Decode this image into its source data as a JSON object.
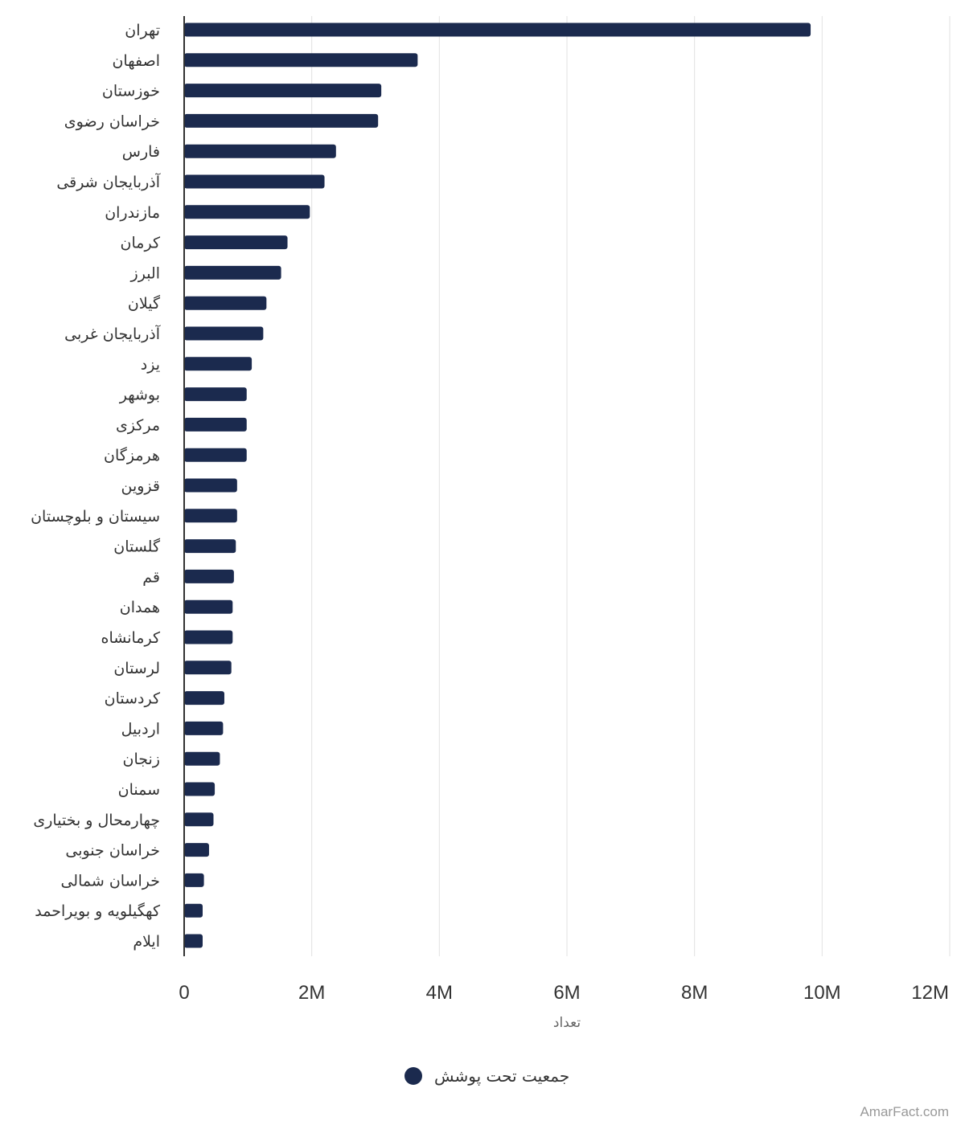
{
  "chart_data": {
    "type": "bar",
    "orientation": "horizontal",
    "categories": [
      "تهران",
      "اصفهان",
      "خوزستان",
      "خراسان رضوی",
      "فارس",
      "آذربایجان شرقی",
      "مازندران",
      "کرمان",
      "البرز",
      "گیلان",
      "آذربایجان غربی",
      "یزد",
      "بوشهر",
      "مرکزی",
      "هرمزگان",
      "قزوین",
      "سیستان و بلوچستان",
      "گلستان",
      "قم",
      "همدان",
      "کرمانشاه",
      "لرستان",
      "کردستان",
      "اردبیل",
      "زنجان",
      "سمنان",
      "چهارمحال و بختیاری",
      "خراسان جنوبی",
      "خراسان شمالی",
      "کهگیلویه و بویراحمد",
      "ایلام"
    ],
    "series": [
      {
        "name": "جمعیت تحت پوشش",
        "color": "#1b2a4e",
        "values": [
          9820000,
          3660000,
          3090000,
          3040000,
          2380000,
          2200000,
          1970000,
          1620000,
          1520000,
          1290000,
          1240000,
          1060000,
          980000,
          980000,
          980000,
          830000,
          830000,
          810000,
          780000,
          760000,
          760000,
          740000,
          630000,
          610000,
          560000,
          480000,
          460000,
          390000,
          310000,
          290000,
          290000
        ]
      }
    ],
    "xlim": [
      0,
      12000000
    ],
    "ticks": [
      {
        "value": 0,
        "label": "0"
      },
      {
        "value": 2000000,
        "label": "2M"
      },
      {
        "value": 4000000,
        "label": "4M"
      },
      {
        "value": 6000000,
        "label": "6M"
      },
      {
        "value": 8000000,
        "label": "8M"
      },
      {
        "value": 10000000,
        "label": "10M"
      },
      {
        "value": 12000000,
        "label": "12M"
      }
    ],
    "xlabel": "تعداد",
    "ylabel": "",
    "grid": true,
    "legend_position": "bottom-center"
  },
  "credit": "AmarFact.com"
}
